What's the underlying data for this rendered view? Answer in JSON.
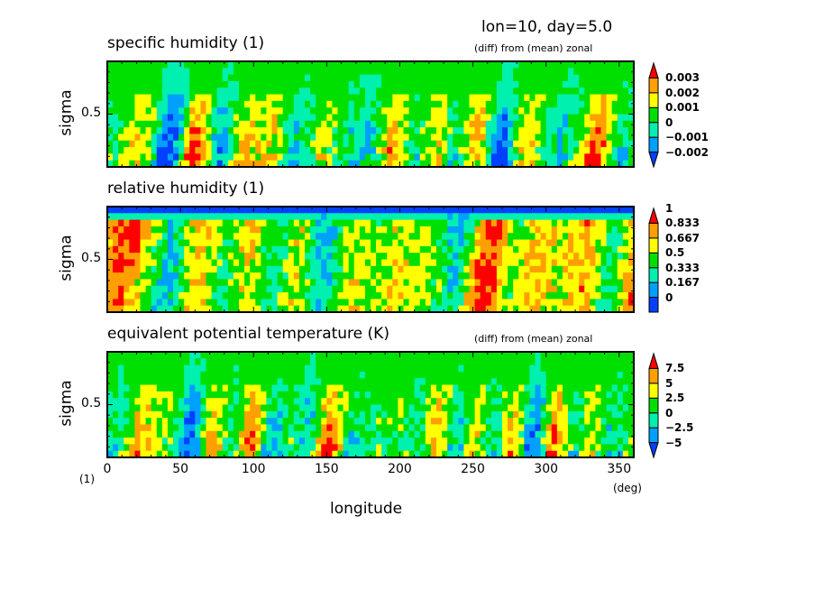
{
  "header": {
    "title_right": "lon=10, day=5.0"
  },
  "chart_data": [
    {
      "type": "heatmap",
      "title": "specific humidity (1)",
      "annotation": "(diff) from (mean) zonal",
      "xlabel": "longitude",
      "ylabel": "sigma",
      "xlim": [
        0,
        360
      ],
      "ylim": [
        1,
        0
      ],
      "yticks": [
        "0.5"
      ],
      "colorbar": {
        "labels": [
          "0.003",
          "0.002",
          "0.001",
          "0",
          "−0.001",
          "−0.002"
        ],
        "colors": [
          "#0040ff",
          "#00a0ff",
          "#00f0b0",
          "#00e000",
          "#ffff00",
          "#ffa000",
          "#ff0000"
        ],
        "extend": "both"
      }
    },
    {
      "type": "heatmap",
      "title": "relative humidity (1)",
      "xlabel": "longitude",
      "ylabel": "sigma",
      "xlim": [
        0,
        360
      ],
      "ylim": [
        1,
        0
      ],
      "yticks": [
        "0.5"
      ],
      "colorbar": {
        "labels": [
          "1",
          "0.833",
          "0.667",
          "0.5",
          "0.333",
          "0.167",
          "0"
        ],
        "colors": [
          "#0040ff",
          "#00a0ff",
          "#00f0b0",
          "#00e000",
          "#ffff00",
          "#ffa000",
          "#ff0000"
        ],
        "extend": "max"
      }
    },
    {
      "type": "heatmap",
      "title": "equivalent potential temperature (K)",
      "annotation": "(diff) from (mean) zonal",
      "xlabel": "longitude",
      "ylabel": "sigma",
      "xlim": [
        0,
        360
      ],
      "ylim": [
        1,
        0
      ],
      "yticks": [
        "0.5"
      ],
      "xticks": [
        "0",
        "50",
        "100",
        "150",
        "200",
        "250",
        "300",
        "350"
      ],
      "x_unit": "(deg)",
      "y_unit": "(1)",
      "colorbar": {
        "labels": [
          "7.5",
          "5",
          "2.5",
          "0",
          "−2.5",
          "−5"
        ],
        "colors": [
          "#0040ff",
          "#00a0ff",
          "#00f0b0",
          "#00e000",
          "#ffff00",
          "#ffa000",
          "#ff0000"
        ],
        "extend": "both"
      }
    }
  ]
}
